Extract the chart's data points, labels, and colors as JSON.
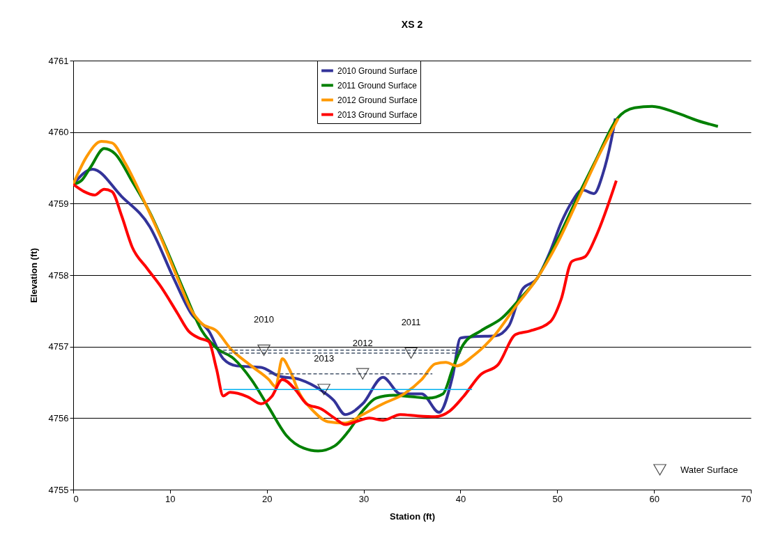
{
  "chart_data": {
    "type": "line",
    "title": "XS 2",
    "xlabel": "Station (ft)",
    "ylabel": "Elevation (ft)",
    "xlim": [
      0,
      70
    ],
    "xticks": [
      0,
      10,
      20,
      30,
      40,
      50,
      60,
      70
    ],
    "ylim": [
      4755,
      4761
    ],
    "yticks": [
      4755,
      4756,
      4757,
      4758,
      4759,
      4760,
      4761
    ],
    "grid": "y",
    "legend": "top",
    "line_style": "solid",
    "series": [
      {
        "name": "2010 Ground Surface",
        "color": "#333399",
        "x": [
          0,
          2.0,
          5.0,
          7.9,
          10.4,
          12.2,
          14.0,
          15.5,
          16.9,
          19.4,
          21.2,
          23.4,
          25.6,
          26.9,
          28.1,
          29.9,
          32.0,
          33.8,
          36.0,
          37.8,
          39.2,
          40.0,
          41.4,
          43.6,
          45.0,
          46.4,
          47.9,
          49.3,
          50.4,
          51.5,
          52.6,
          53.8,
          54.7,
          55.6,
          56.0
        ],
        "values": [
          4759.27,
          4759.48,
          4759.1,
          4758.68,
          4757.95,
          4757.46,
          4757.22,
          4756.83,
          4756.73,
          4756.71,
          4756.59,
          4756.54,
          4756.39,
          4756.25,
          4756.05,
          4756.2,
          4756.57,
          4756.34,
          4756.34,
          4756.08,
          4756.59,
          4757.12,
          4757.14,
          4757.15,
          4757.29,
          4757.8,
          4757.95,
          4758.34,
          4758.73,
          4759.02,
          4759.19,
          4759.14,
          4759.41,
          4759.9,
          4760.19
        ]
      },
      {
        "name": "2011 Ground Surface",
        "color": "#008000",
        "x": [
          0,
          0.9,
          1.8,
          3.2,
          4.3,
          6.1,
          7.9,
          9.7,
          11.5,
          13.3,
          14.8,
          16.6,
          18.4,
          20.2,
          22.0,
          23.8,
          25.3,
          27.0,
          28.4,
          29.9,
          31.3,
          33.1,
          34.9,
          36.7,
          38.2,
          39.2,
          40.3,
          42.1,
          44.3,
          46.1,
          47.9,
          50.0,
          52.2,
          54.0,
          56.2,
          58.0,
          59.8,
          62.3,
          64.5,
          66.6
        ],
        "values": [
          4759.27,
          4759.33,
          4759.51,
          4759.77,
          4759.7,
          4759.31,
          4758.88,
          4758.34,
          4757.76,
          4757.22,
          4756.98,
          4756.83,
          4756.54,
          4756.15,
          4755.76,
          4755.58,
          4755.54,
          4755.61,
          4755.81,
          4756.1,
          4756.28,
          4756.32,
          4756.3,
          4756.28,
          4756.34,
          4756.69,
          4757.03,
          4757.22,
          4757.4,
          4757.66,
          4757.95,
          4758.49,
          4759.12,
          4759.61,
          4760.19,
          4760.34,
          4760.36,
          4760.27,
          4760.16,
          4760.08
        ]
      },
      {
        "name": "2012 Ground Surface",
        "color": "#ff9900",
        "x": [
          0,
          1.4,
          2.9,
          4.0,
          5.4,
          7.2,
          9.0,
          10.8,
          12.2,
          13.3,
          14.8,
          16.2,
          18.4,
          20.2,
          20.9,
          21.6,
          22.3,
          23.4,
          24.8,
          26.3,
          28.1,
          29.9,
          32.0,
          34.2,
          36.0,
          37.4,
          38.5,
          39.6,
          41.4,
          43.6,
          45.7,
          47.9,
          50.0,
          52.2,
          54.4,
          56.3
        ],
        "values": [
          4759.27,
          4759.66,
          4759.87,
          4759.85,
          4759.56,
          4759.07,
          4758.54,
          4757.95,
          4757.51,
          4757.32,
          4757.22,
          4756.98,
          4756.73,
          4756.54,
          4756.44,
          4756.83,
          4756.69,
          4756.34,
          4756.1,
          4755.95,
          4755.93,
          4756.05,
          4756.2,
          4756.34,
          4756.54,
          4756.76,
          4756.78,
          4756.73,
          4756.88,
          4757.17,
          4757.56,
          4757.95,
          4758.44,
          4759.07,
          4759.7,
          4760.19
        ]
      },
      {
        "name": "2013 Ground Surface",
        "color": "#ff0000",
        "x": [
          0,
          1.1,
          2.2,
          3.2,
          4.0,
          5.0,
          6.1,
          7.6,
          9.0,
          10.8,
          11.9,
          13.0,
          14.0,
          14.8,
          15.5,
          16.2,
          18.0,
          19.4,
          20.5,
          21.6,
          23.0,
          24.1,
          25.6,
          27.0,
          28.1,
          29.2,
          30.6,
          32.0,
          33.8,
          35.6,
          37.4,
          38.9,
          40.3,
          42.1,
          43.9,
          45.7,
          47.2,
          49.3,
          50.4,
          51.5,
          52.9,
          54.0,
          56.1
        ],
        "values": [
          4759.27,
          4759.17,
          4759.12,
          4759.2,
          4759.17,
          4758.83,
          4758.39,
          4758.1,
          4757.85,
          4757.46,
          4757.22,
          4757.12,
          4757.07,
          4756.69,
          4756.31,
          4756.36,
          4756.3,
          4756.2,
          4756.3,
          4756.54,
          4756.39,
          4756.2,
          4756.13,
          4756.0,
          4755.91,
          4755.95,
          4756.0,
          4755.97,
          4756.05,
          4756.03,
          4756.02,
          4756.1,
          4756.3,
          4756.61,
          4756.75,
          4757.17,
          4757.22,
          4757.35,
          4757.66,
          4758.19,
          4758.26,
          4758.54,
          4759.32
        ]
      },
      {
        "type": "line",
        "color": "#44546a",
        "line_style": "dashed",
        "x": [
          15.5,
          40.1
        ],
        "values": [
          4756.95,
          4756.95
        ]
      },
      {
        "type": "line",
        "color": "#44546a",
        "line_style": "dashed",
        "x": [
          15.5,
          40.1
        ],
        "values": [
          4756.91,
          4756.91
        ]
      },
      {
        "type": "line",
        "color": "#44546a",
        "line_style": "dashed",
        "x": [
          20.2,
          37.1
        ],
        "values": [
          4756.62,
          4756.62
        ]
      },
      {
        "type": "line",
        "color": "#00b0f0",
        "line_style": "solid",
        "x": [
          15.5,
          41.2
        ],
        "values": [
          4756.4,
          4756.4
        ]
      },
      {
        "type": "scatter",
        "name": "Water Surface",
        "color": "#000000",
        "marker": "triangle",
        "x": [
          19.7,
          34.9,
          29.9,
          25.9
        ],
        "values": [
          4756.95,
          4756.91,
          4756.62,
          4756.4
        ]
      }
    ],
    "annotations": [
      {
        "text": "2010",
        "x": 19.7,
        "y": 4756.95
      },
      {
        "text": "2011",
        "x": 34.9,
        "y": 4756.91
      },
      {
        "text": "2012",
        "x": 29.9,
        "y": 4756.62
      },
      {
        "text": "2013",
        "x": 25.9,
        "y": 4756.4
      }
    ]
  }
}
